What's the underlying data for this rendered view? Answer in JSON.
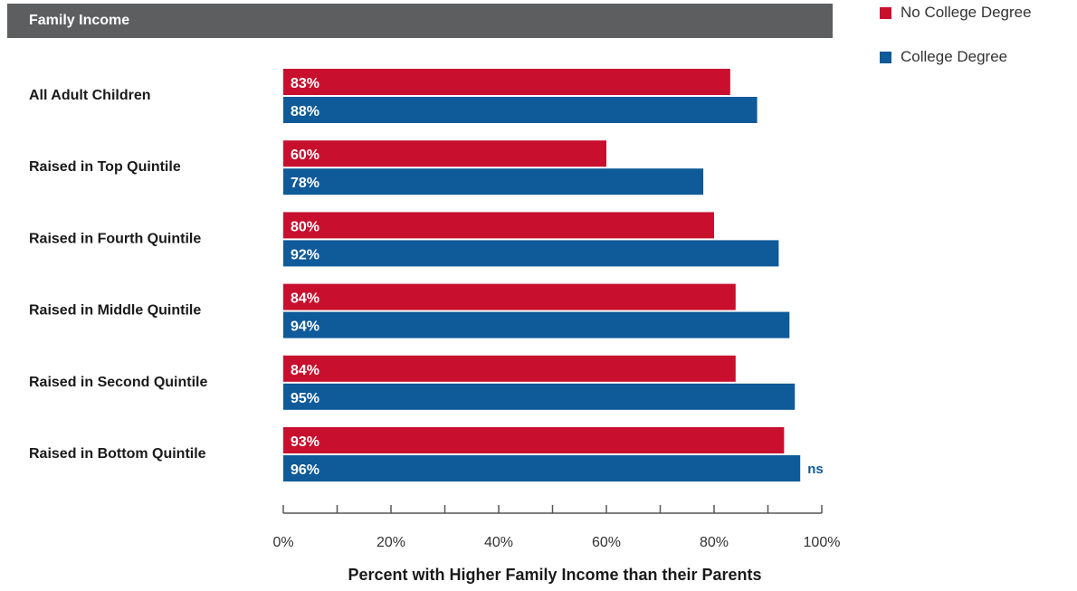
{
  "header": {
    "title": "Family Income"
  },
  "colors": {
    "header_bg": "#5d5e60",
    "no_degree": "#c8102e",
    "degree": "#0f5a99",
    "axis": "#555555"
  },
  "legend": [
    {
      "label": "No College Degree",
      "color": "#c8102e"
    },
    {
      "label": "College Degree",
      "color": "#0f5a99"
    }
  ],
  "chart_data": {
    "type": "bar",
    "orientation": "horizontal",
    "categories": [
      "All Adult Children",
      "Raised in Top Quintile",
      "Raised in Fourth Quintile",
      "Raised in Middle Quintile",
      "Raised in Second Quintile",
      "Raised in Bottom Quintile"
    ],
    "series": [
      {
        "name": "No College Degree",
        "color": "#c8102e",
        "values": [
          83,
          60,
          80,
          84,
          84,
          93
        ],
        "labels": [
          "83%",
          "60%",
          "80%",
          "84%",
          "84%",
          "93%"
        ]
      },
      {
        "name": "College Degree",
        "color": "#0f5a99",
        "values": [
          88,
          78,
          92,
          94,
          95,
          96
        ],
        "labels": [
          "88%",
          "78%",
          "92%",
          "94%",
          "95%",
          "96%"
        ]
      }
    ],
    "annotations": [
      {
        "category": "Raised in Bottom Quintile",
        "series": "College Degree",
        "text": "ns"
      }
    ],
    "xlim": [
      0,
      100
    ],
    "xticks": [
      0,
      20,
      40,
      60,
      80,
      100
    ],
    "xtick_labels": [
      "0%",
      "20%",
      "40%",
      "60%",
      "80%",
      "100%"
    ],
    "minor_ticks_every": 10,
    "xlabel": "Percent with Higher Family Income than their Parents",
    "ylabel": "",
    "grid": false,
    "legend_position": "top-right"
  }
}
